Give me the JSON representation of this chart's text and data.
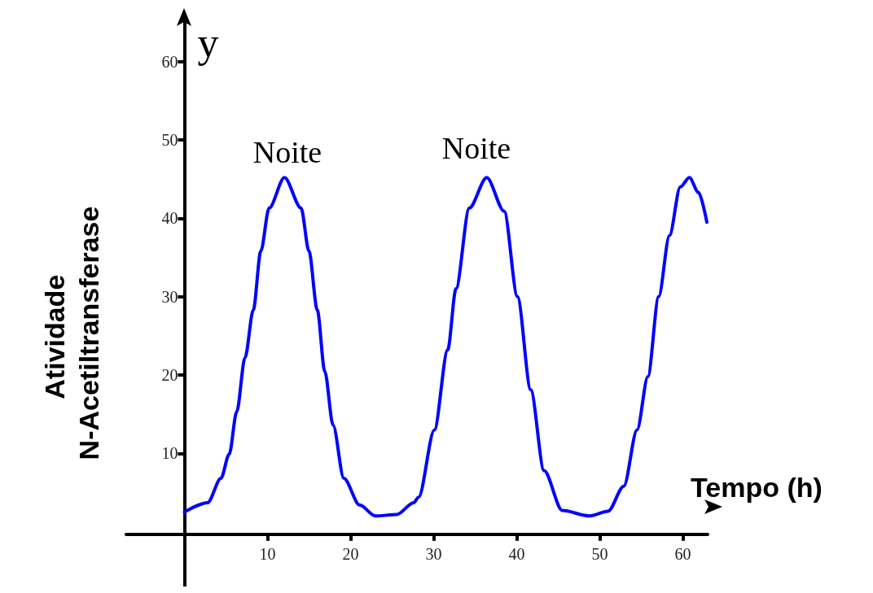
{
  "chart_data": {
    "type": "line",
    "xlabel": "Tempo (h)",
    "ylabel": "Atividade N-Acetiltransferase",
    "annotations": [
      "Noite",
      "Noite",
      "y"
    ],
    "x": [
      0,
      2.8,
      4.4,
      5.4,
      6.3,
      7.3,
      8.3,
      9.2,
      10.2,
      12.05,
      14.05,
      15,
      16,
      16.9,
      17.9,
      19.2,
      21.1,
      23,
      25.6,
      27.6,
      28.2,
      30.1,
      31.7,
      32.7,
      34.3,
      36.4,
      38.5,
      40.1,
      41.7,
      43.3,
      45.5,
      48.8,
      51,
      52.9,
      54.5,
      55.8,
      57.1,
      58.4,
      59.7,
      60.8,
      61.9,
      62.9
    ],
    "series": [
      {
        "color": "#0000ff",
        "values": [
          2.5,
          3.7,
          6.8,
          9.9,
          15.3,
          22.2,
          28.3,
          35.8,
          41.3,
          45.2,
          41.3,
          35.8,
          28.3,
          20.5,
          13.6,
          6.8,
          3.4,
          2,
          2.2,
          3.7,
          4.4,
          13,
          23.2,
          31,
          41.3,
          45.2,
          40.9,
          30,
          18.1,
          7.8,
          2.7,
          2,
          2.6,
          5.8,
          13,
          19.8,
          30,
          37.8,
          44,
          45.2,
          43.3,
          39.5
        ]
      }
    ],
    "xlim": [
      -7,
      63
    ],
    "ylim": [
      -7,
      66
    ],
    "xticks": [
      10,
      20,
      30,
      40,
      50,
      60
    ],
    "yticks": [
      10,
      20,
      30,
      40,
      50,
      60
    ],
    "grid": false,
    "marker": "none",
    "line_style": "solid"
  }
}
